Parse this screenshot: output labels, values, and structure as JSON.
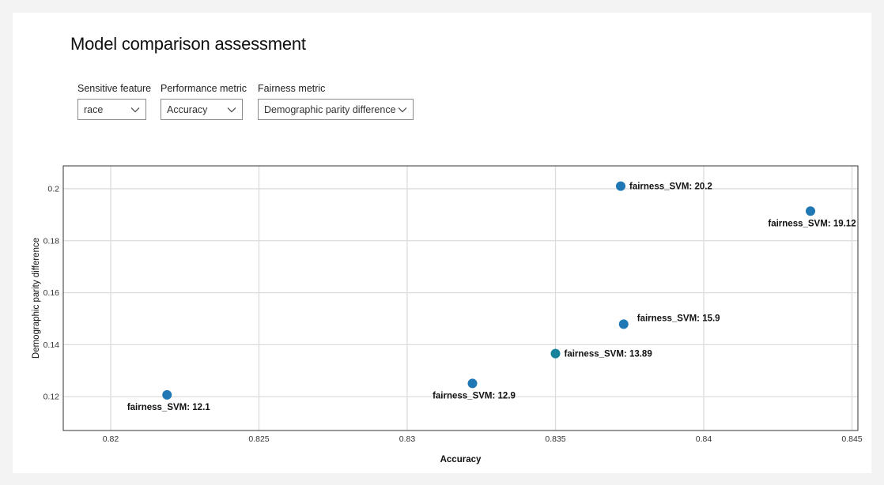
{
  "page": {
    "title": "Model comparison assessment"
  },
  "controls": {
    "sensitive_feature": {
      "label": "Sensitive feature",
      "value": "race"
    },
    "performance_metric": {
      "label": "Performance metric",
      "value": "Accuracy"
    },
    "fairness_metric": {
      "label": "Fairness metric",
      "value": "Demographic parity difference"
    }
  },
  "icons": {
    "dropdown": "chevron-down-icon"
  },
  "colors": {
    "point": "#1f77b4",
    "point_highlight": "#17839a",
    "plot_border": "#333333",
    "grid": "#dcdcdc"
  },
  "chart_data": {
    "type": "scatter",
    "xlabel": "Accuracy",
    "ylabel": "Demographic parity difference",
    "xlim": [
      0.8184,
      0.8452
    ],
    "ylim": [
      0.107,
      0.2088
    ],
    "x_ticks": [
      0.82,
      0.825,
      0.83,
      0.835,
      0.84,
      0.845
    ],
    "x_tick_labels": [
      "0.82",
      "0.825",
      "0.83",
      "0.835",
      "0.84",
      "0.845"
    ],
    "y_ticks": [
      0.12,
      0.14,
      0.16,
      0.18,
      0.2
    ],
    "y_tick_labels": [
      "0.12",
      "0.14",
      "0.16",
      "0.18",
      "0.2"
    ],
    "grid": true,
    "points": [
      {
        "label": "fairness_SVM: 20.2",
        "x": 0.8372,
        "y": 0.201,
        "label_pos": "right"
      },
      {
        "label": "fairness_SVM: 19.12",
        "x": 0.8436,
        "y": 0.1914,
        "label_pos": "below"
      },
      {
        "label": "fairness_SVM: 15.9",
        "x": 0.8373,
        "y": 0.1479,
        "label_pos": "above-right"
      },
      {
        "label": "fairness_SVM: 13.89",
        "x": 0.835,
        "y": 0.1366,
        "label_pos": "right",
        "highlight": true
      },
      {
        "label": "fairness_SVM: 12.9",
        "x": 0.8322,
        "y": 0.1251,
        "label_pos": "below"
      },
      {
        "label": "fairness_SVM: 12.1",
        "x": 0.8219,
        "y": 0.1207,
        "label_pos": "below"
      }
    ]
  }
}
